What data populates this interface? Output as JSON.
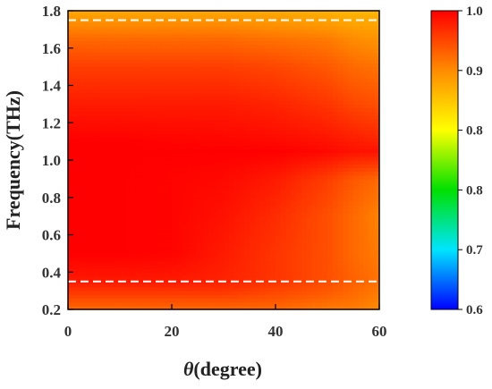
{
  "chart_data": {
    "type": "heatmap",
    "xlabel_symbol": "θ",
    "xlabel_text": "(degree)",
    "ylabel": "Frequency(THz)",
    "xlim": [
      0,
      60
    ],
    "ylim": [
      0.2,
      1.8
    ],
    "x_ticks": [
      "0",
      "20",
      "40",
      "60"
    ],
    "y_ticks": [
      "0.2",
      "0.4",
      "0.6",
      "0.8",
      "1.0",
      "1.2",
      "1.4",
      "1.6",
      "1.8"
    ],
    "colorbar_ticks": [
      "0.6",
      "0.7",
      "0.8",
      "0.8",
      "0.9",
      "1.0"
    ],
    "colorbar_range": [
      0.6,
      1.0
    ],
    "reference_lines": [
      {
        "frequency": 1.75,
        "style": "dashed",
        "color": "#ffffff"
      },
      {
        "frequency": 0.35,
        "style": "dashed",
        "color": "#ffffff"
      }
    ],
    "colors": {
      "max": "#ff0000",
      "high": "#ff8c00",
      "mid": "#ffff00",
      "lower": "#00e000",
      "low": "#00e5ff",
      "min": "#0000ff"
    },
    "x": [
      0,
      10,
      20,
      30,
      40,
      50,
      55,
      60
    ],
    "y": [
      0.2,
      0.3,
      0.35,
      0.5,
      0.7,
      0.9,
      1.05,
      1.1,
      1.3,
      1.5,
      1.65,
      1.75,
      1.8
    ],
    "values": [
      [
        0.94,
        0.94,
        0.94,
        0.94,
        0.94,
        0.93,
        0.93,
        0.92
      ],
      [
        0.97,
        0.97,
        0.97,
        0.97,
        0.96,
        0.95,
        0.94,
        0.93
      ],
      [
        0.985,
        0.985,
        0.985,
        0.98,
        0.97,
        0.955,
        0.945,
        0.935
      ],
      [
        1.0,
        1.0,
        0.998,
        0.985,
        0.97,
        0.955,
        0.94,
        0.93
      ],
      [
        1.0,
        1.0,
        0.998,
        0.99,
        0.975,
        0.955,
        0.94,
        0.925
      ],
      [
        1.0,
        1.0,
        0.998,
        0.995,
        0.985,
        0.965,
        0.95,
        0.94
      ],
      [
        1.0,
        1.0,
        1.0,
        1.0,
        1.0,
        0.995,
        0.99,
        0.99
      ],
      [
        1.0,
        1.0,
        0.998,
        0.997,
        0.995,
        0.99,
        0.985,
        0.98
      ],
      [
        0.985,
        0.985,
        0.985,
        0.985,
        0.98,
        0.97,
        0.96,
        0.955
      ],
      [
        0.965,
        0.965,
        0.965,
        0.965,
        0.96,
        0.95,
        0.94,
        0.935
      ],
      [
        0.94,
        0.94,
        0.94,
        0.94,
        0.935,
        0.93,
        0.92,
        0.915
      ],
      [
        0.915,
        0.915,
        0.915,
        0.915,
        0.91,
        0.905,
        0.9,
        0.9
      ],
      [
        0.9,
        0.9,
        0.9,
        0.9,
        0.9,
        0.895,
        0.89,
        0.89
      ]
    ]
  }
}
